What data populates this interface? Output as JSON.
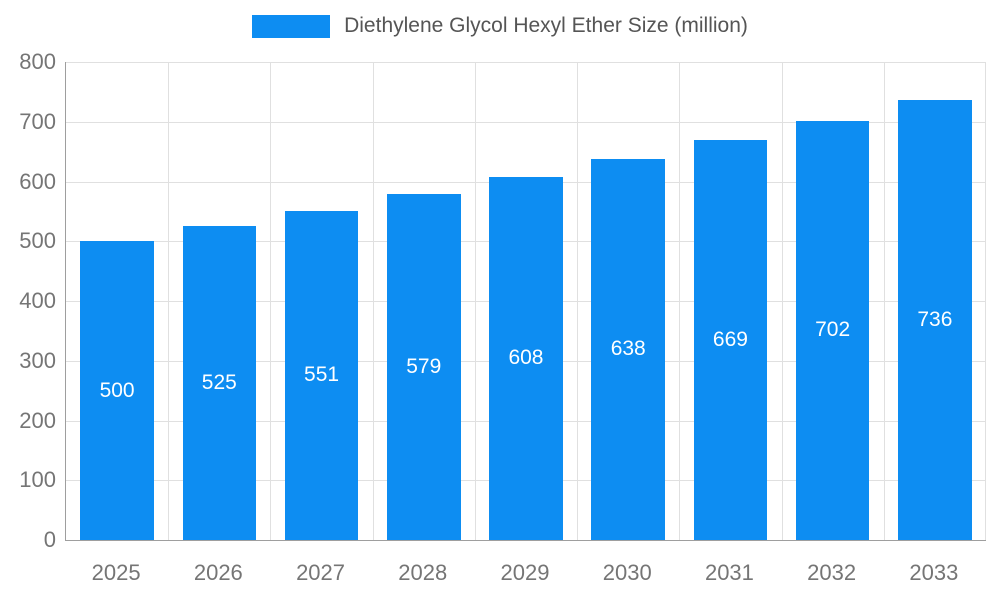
{
  "legend": {
    "label": "Diethylene Glycol Hexyl Ether Size (million)"
  },
  "colors": {
    "bar": "#0d8df2",
    "grid": "#e0e0e0",
    "axis_line": "#9e9e9e",
    "axis_text": "#757575",
    "title_text": "#555555",
    "bar_label": "#ffffff"
  },
  "chart_data": {
    "type": "bar",
    "title": "Diethylene Glycol Hexyl Ether Size (million)",
    "categories": [
      "2025",
      "2026",
      "2027",
      "2028",
      "2029",
      "2030",
      "2031",
      "2032",
      "2033"
    ],
    "values": [
      500,
      525,
      551,
      579,
      608,
      638,
      669,
      702,
      736
    ],
    "series": [
      {
        "name": "Diethylene Glycol Hexyl Ether Size (million)",
        "values": [
          500,
          525,
          551,
          579,
          608,
          638,
          669,
          702,
          736
        ]
      }
    ],
    "xlabel": "",
    "ylabel": "",
    "ylim": [
      0,
      800
    ],
    "yticks": [
      0,
      100,
      200,
      300,
      400,
      500,
      600,
      700,
      800
    ],
    "grid": true,
    "legend_position": "top",
    "value_labels": "inside-center"
  }
}
